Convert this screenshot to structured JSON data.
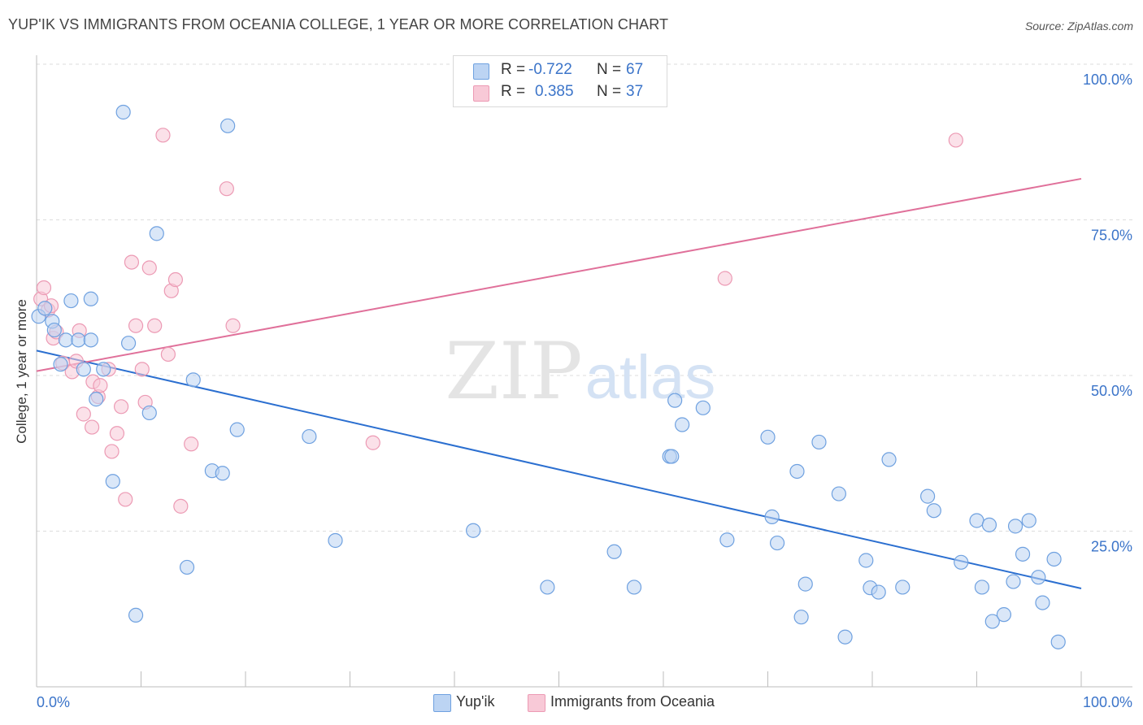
{
  "title": "YUP'IK VS IMMIGRANTS FROM OCEANIA COLLEGE, 1 YEAR OR MORE CORRELATION CHART",
  "source": "Source: ZipAtlas.com",
  "watermark": {
    "zip": "ZIP",
    "atlas": "atlas"
  },
  "colors": {
    "blue": "#6fa1e0",
    "blue_fill": "#bcd4f3",
    "blue_line": "#2b6fd0",
    "pink": "#ec9ab4",
    "pink_fill": "#f8c9d7",
    "pink_line": "#e0709a",
    "tick_label": "#3b74c9"
  },
  "stats": [
    {
      "r_label": "R =",
      "r_value": "-0.722",
      "n_label": "N =",
      "n_value": "67"
    },
    {
      "r_label": "R =",
      "r_value": "0.385",
      "n_label": "N =",
      "n_value": "37"
    }
  ],
  "chart_data": {
    "type": "scatter",
    "title": "YUP'IK VS IMMIGRANTS FROM OCEANIA COLLEGE, 1 YEAR OR MORE CORRELATION CHART",
    "xlabel": "",
    "ylabel": "College, 1 year or more",
    "xlim": [
      0,
      100
    ],
    "ylim": [
      0,
      100
    ],
    "x_tick_labels": {
      "left": "0.0%",
      "right": "100.0%"
    },
    "y_ticks": [
      {
        "value": 100,
        "label": "100.0%"
      },
      {
        "value": 75,
        "label": "75.0%"
      },
      {
        "value": 50,
        "label": "50.0%"
      },
      {
        "value": 25,
        "label": "25.0%"
      }
    ],
    "grid": true,
    "legend_position": "bottom-center",
    "series": [
      {
        "name": "Yup'ik",
        "r": -0.722,
        "n": 67,
        "trend": {
          "x0": 0,
          "y0": 54.0,
          "x1": 100,
          "y1": 15.8
        },
        "points": [
          [
            0.2,
            59.5
          ],
          [
            0.8,
            60.8
          ],
          [
            1.5,
            58.7
          ],
          [
            1.7,
            57.3
          ],
          [
            2.3,
            51.8
          ],
          [
            2.8,
            55.7
          ],
          [
            3.3,
            62.0
          ],
          [
            4.0,
            55.7
          ],
          [
            4.5,
            51.0
          ],
          [
            5.2,
            55.7
          ],
          [
            5.2,
            62.3
          ],
          [
            5.7,
            46.2
          ],
          [
            6.4,
            51.0
          ],
          [
            7.3,
            33.0
          ],
          [
            8.3,
            92.3
          ],
          [
            8.8,
            55.2
          ],
          [
            9.5,
            11.5
          ],
          [
            10.8,
            44.0
          ],
          [
            11.5,
            72.8
          ],
          [
            14.4,
            19.2
          ],
          [
            15.0,
            49.3
          ],
          [
            16.8,
            34.7
          ],
          [
            17.8,
            34.3
          ],
          [
            18.3,
            90.1
          ],
          [
            19.2,
            41.3
          ],
          [
            26.1,
            40.2
          ],
          [
            28.6,
            23.5
          ],
          [
            41.8,
            25.1
          ],
          [
            48.9,
            16.0
          ],
          [
            55.3,
            21.7
          ],
          [
            57.2,
            16.0
          ],
          [
            60.6,
            37.0
          ],
          [
            60.8,
            37.0
          ],
          [
            61.1,
            46.0
          ],
          [
            61.8,
            42.1
          ],
          [
            63.8,
            44.8
          ],
          [
            66.1,
            23.6
          ],
          [
            70.0,
            40.1
          ],
          [
            70.4,
            27.3
          ],
          [
            70.9,
            23.1
          ],
          [
            72.8,
            34.6
          ],
          [
            73.2,
            11.2
          ],
          [
            73.6,
            16.5
          ],
          [
            74.9,
            39.3
          ],
          [
            76.8,
            31.0
          ],
          [
            77.4,
            8.0
          ],
          [
            79.4,
            20.3
          ],
          [
            79.8,
            15.9
          ],
          [
            80.6,
            15.2
          ],
          [
            81.6,
            36.5
          ],
          [
            82.9,
            16.0
          ],
          [
            85.3,
            30.6
          ],
          [
            85.9,
            28.3
          ],
          [
            88.5,
            20.0
          ],
          [
            90.0,
            26.7
          ],
          [
            90.5,
            16.0
          ],
          [
            91.2,
            26.0
          ],
          [
            91.5,
            10.5
          ],
          [
            92.6,
            11.6
          ],
          [
            93.5,
            16.9
          ],
          [
            93.7,
            25.8
          ],
          [
            94.4,
            21.3
          ],
          [
            95.0,
            26.7
          ],
          [
            95.9,
            17.6
          ],
          [
            96.3,
            13.5
          ],
          [
            97.4,
            20.5
          ],
          [
            97.8,
            7.2
          ]
        ]
      },
      {
        "name": "Immigrants from Oceania",
        "r": 0.385,
        "n": 37,
        "trend": {
          "x0": 0,
          "y0": 50.7,
          "x1": 100,
          "y1": 81.6
        },
        "points": [
          [
            0.4,
            62.3
          ],
          [
            0.7,
            64.1
          ],
          [
            1.1,
            60.5
          ],
          [
            1.4,
            61.2
          ],
          [
            1.6,
            56.0
          ],
          [
            1.9,
            57.0
          ],
          [
            2.5,
            52.0
          ],
          [
            3.4,
            50.6
          ],
          [
            3.8,
            52.3
          ],
          [
            4.1,
            57.2
          ],
          [
            4.5,
            43.8
          ],
          [
            5.3,
            41.7
          ],
          [
            5.4,
            49.0
          ],
          [
            5.9,
            46.6
          ],
          [
            6.1,
            48.4
          ],
          [
            6.9,
            51.0
          ],
          [
            7.2,
            37.8
          ],
          [
            7.7,
            40.7
          ],
          [
            8.1,
            45.0
          ],
          [
            8.5,
            30.1
          ],
          [
            9.1,
            68.2
          ],
          [
            9.5,
            58.0
          ],
          [
            10.1,
            51.0
          ],
          [
            10.4,
            45.7
          ],
          [
            10.8,
            67.3
          ],
          [
            11.3,
            58.0
          ],
          [
            12.1,
            88.6
          ],
          [
            12.6,
            53.4
          ],
          [
            12.9,
            63.6
          ],
          [
            13.3,
            65.4
          ],
          [
            13.8,
            29.0
          ],
          [
            14.8,
            39.0
          ],
          [
            18.2,
            80.0
          ],
          [
            18.8,
            58.0
          ],
          [
            32.2,
            39.2
          ],
          [
            65.9,
            65.6
          ],
          [
            88.0,
            87.8
          ]
        ]
      }
    ]
  },
  "legend": [
    {
      "label": "Yup'ik"
    },
    {
      "label": "Immigrants from Oceania"
    }
  ]
}
